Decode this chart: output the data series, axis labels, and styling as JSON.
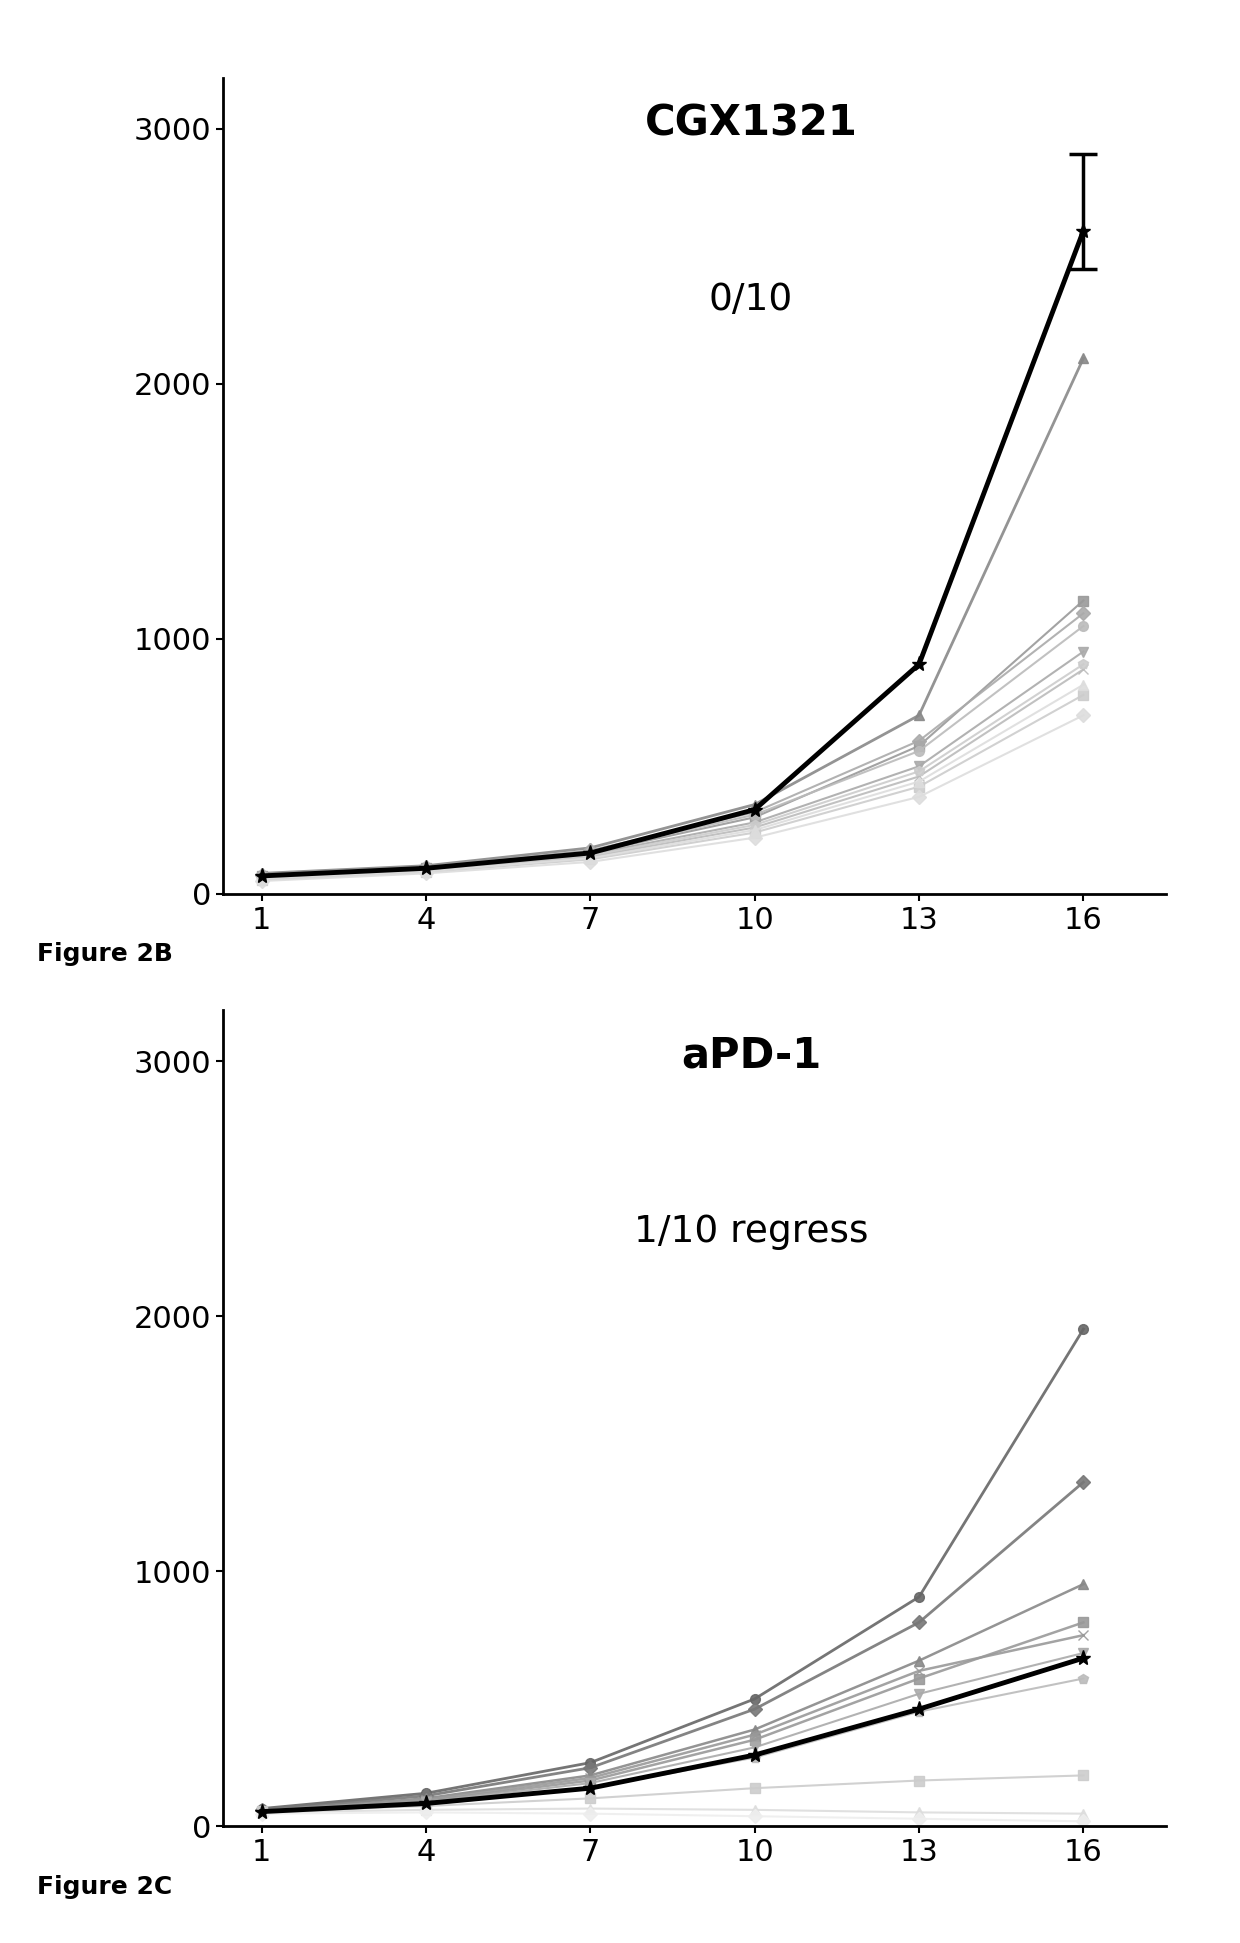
{
  "panel_B": {
    "title": "CGX1321",
    "subtitle": "0/10",
    "x_ticks": [
      1,
      4,
      7,
      10,
      13,
      16
    ],
    "ylim": [
      0,
      3200
    ],
    "yticks": [
      0,
      1000,
      2000,
      3000
    ],
    "individual_lines": [
      {
        "data": [
          80,
          110,
          180,
          350,
          700,
          2100
        ],
        "color": "#888888",
        "marker": "^",
        "lw": 2.0
      },
      {
        "data": [
          70,
          100,
          160,
          300,
          580,
          1150
        ],
        "color": "#999999",
        "marker": "s",
        "lw": 1.5
      },
      {
        "data": [
          75,
          105,
          170,
          320,
          600,
          1100
        ],
        "color": "#aaaaaa",
        "marker": "D",
        "lw": 1.5
      },
      {
        "data": [
          65,
          95,
          155,
          280,
          500,
          950
        ],
        "color": "#aaaaaa",
        "marker": "v",
        "lw": 1.5
      },
      {
        "data": [
          70,
          100,
          165,
          310,
          560,
          1050
        ],
        "color": "#bbbbbb",
        "marker": "o",
        "lw": 1.5
      },
      {
        "data": [
          60,
          90,
          145,
          260,
          460,
          880
        ],
        "color": "#bbbbbb",
        "marker": "x",
        "lw": 1.5
      },
      {
        "data": [
          65,
          95,
          150,
          270,
          480,
          900
        ],
        "color": "#cccccc",
        "marker": "p",
        "lw": 1.5
      },
      {
        "data": [
          55,
          85,
          135,
          240,
          420,
          780
        ],
        "color": "#cccccc",
        "marker": "s",
        "lw": 1.5
      },
      {
        "data": [
          60,
          88,
          140,
          250,
          440,
          820
        ],
        "color": "#dddddd",
        "marker": "^",
        "lw": 1.5
      },
      {
        "data": [
          50,
          80,
          125,
          220,
          380,
          700
        ],
        "color": "#dddddd",
        "marker": "D",
        "lw": 1.5
      }
    ],
    "mean_line": [
      70,
      100,
      160,
      330,
      900,
      2600
    ],
    "mean_error_up": 300,
    "mean_error_down": 150,
    "mean_marker": "*",
    "figure_label": "Figure 2B"
  },
  "panel_C": {
    "title": "aPD-1",
    "subtitle": "1/10 regress",
    "x_ticks": [
      1,
      4,
      7,
      10,
      13,
      16
    ],
    "ylim": [
      0,
      3200
    ],
    "yticks": [
      0,
      1000,
      2000,
      3000
    ],
    "individual_lines": [
      {
        "data": [
          70,
          130,
          250,
          500,
          900,
          1950
        ],
        "color": "#666666",
        "marker": "o",
        "lw": 2.0
      },
      {
        "data": [
          65,
          120,
          230,
          460,
          800,
          1350
        ],
        "color": "#777777",
        "marker": "D",
        "lw": 2.0
      },
      {
        "data": [
          60,
          110,
          200,
          380,
          650,
          950
        ],
        "color": "#888888",
        "marker": "^",
        "lw": 1.8
      },
      {
        "data": [
          55,
          100,
          180,
          340,
          580,
          800
        ],
        "color": "#999999",
        "marker": "s",
        "lw": 1.8
      },
      {
        "data": [
          60,
          105,
          190,
          360,
          610,
          750
        ],
        "color": "#999999",
        "marker": "x",
        "lw": 1.8
      },
      {
        "data": [
          55,
          95,
          170,
          310,
          520,
          680
        ],
        "color": "#aaaaaa",
        "marker": "v",
        "lw": 1.5
      },
      {
        "data": [
          50,
          85,
          150,
          270,
          450,
          580
        ],
        "color": "#bbbbbb",
        "marker": "p",
        "lw": 1.5
      },
      {
        "data": [
          60,
          80,
          110,
          150,
          180,
          200
        ],
        "color": "#cccccc",
        "marker": "s",
        "lw": 1.5
      },
      {
        "data": [
          55,
          65,
          70,
          65,
          55,
          50
        ],
        "color": "#dddddd",
        "marker": "^",
        "lw": 1.5
      },
      {
        "data": [
          50,
          55,
          50,
          40,
          30,
          20
        ],
        "color": "#eeeeee",
        "marker": "D",
        "lw": 1.5
      }
    ],
    "mean_line": [
      58,
      90,
      150,
      280,
      460,
      660
    ],
    "mean_error_up": 0,
    "mean_error_down": 0,
    "mean_marker": "*",
    "figure_label": "Figure 2C"
  },
  "background_color": "#ffffff",
  "mean_line_color": "#000000",
  "title_fontsize": 30,
  "subtitle_fontsize": 27,
  "tick_fontsize": 22,
  "label_fontsize": 18,
  "fig_width": 12.4,
  "fig_height": 19.43
}
